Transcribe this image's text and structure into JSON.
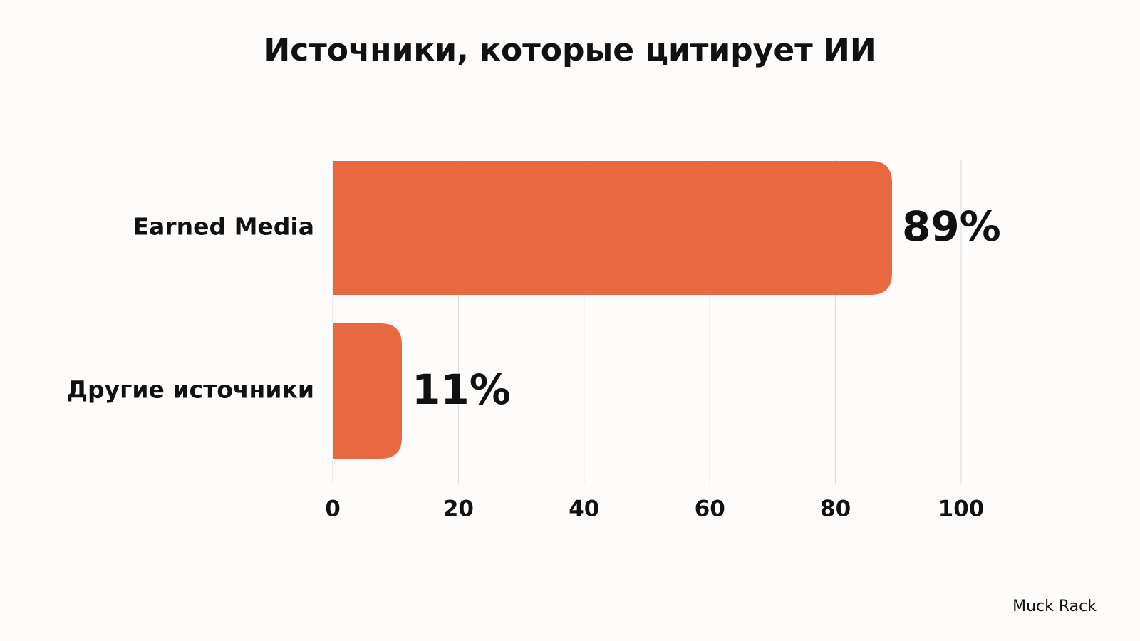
{
  "chart_data": {
    "type": "bar",
    "orientation": "horizontal",
    "title": "Источники, которые цитирует ИИ",
    "categories": [
      "Earned Media",
      "Другие источники"
    ],
    "values": [
      89,
      11
    ],
    "value_labels": [
      "89%",
      "11%"
    ],
    "color": "#e8693f",
    "xlim": [
      0,
      100
    ],
    "xticks": [
      0,
      20,
      40,
      60,
      80,
      100
    ],
    "grid": true,
    "source": "Muck Rack"
  }
}
